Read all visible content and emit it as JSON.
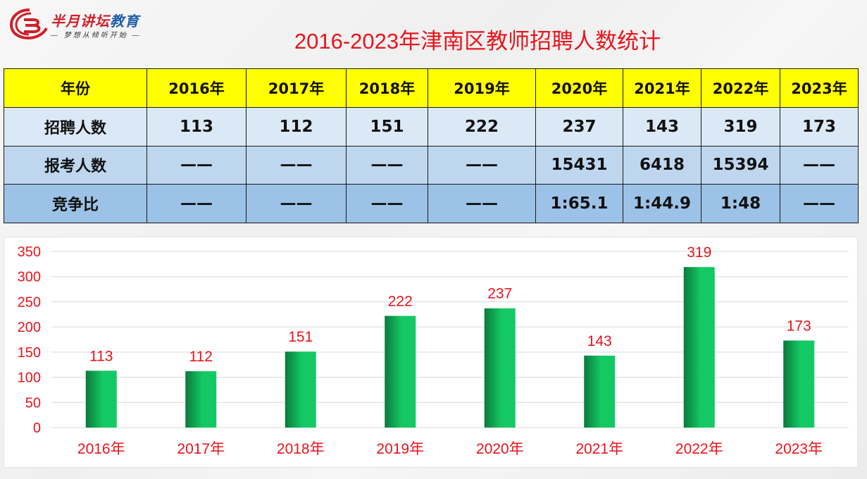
{
  "logo": {
    "name_red": "半月讲坛",
    "name_blue": "教育",
    "slogan": "— 梦想从倾听开始 —"
  },
  "title": "2016-2023年津南区教师招聘人数统计",
  "table": {
    "header": [
      "年份",
      "2016年",
      "2017年",
      "2018年",
      "2019年",
      "2020年",
      "2021年",
      "2022年",
      "2023年"
    ],
    "rows": [
      {
        "label": "招聘人数",
        "cells": [
          "113",
          "112",
          "151",
          "222",
          "237",
          "143",
          "319",
          "173"
        ]
      },
      {
        "label": "报考人数",
        "cells": [
          "——",
          "——",
          "——",
          "——",
          "15431",
          "6418",
          "15394",
          "——"
        ]
      },
      {
        "label": "竞争比",
        "cells": [
          "——",
          "——",
          "——",
          "——",
          "1:65.1",
          "1:44.9",
          "1:48",
          "——"
        ]
      }
    ],
    "colors": {
      "header": "#ffff00",
      "row1": "#dbe9f6",
      "row2": "#bed7ef",
      "row3": "#9cc2e7"
    }
  },
  "chart_data": {
    "type": "bar",
    "title": "2016-2023年津南区教师招聘人数统计",
    "categories": [
      "2016年",
      "2017年",
      "2018年",
      "2019年",
      "2020年",
      "2021年",
      "2022年",
      "2023年"
    ],
    "values": [
      113,
      112,
      151,
      222,
      237,
      143,
      319,
      173
    ],
    "data_labels": [
      "113",
      "112",
      "151",
      "222",
      "237",
      "143",
      "319",
      "173"
    ],
    "xlabel": "",
    "ylabel": "",
    "ylim": [
      0,
      350
    ],
    "yticks": [
      0,
      50,
      100,
      150,
      200,
      250,
      300,
      350
    ],
    "ytick_labels": [
      "0",
      "50",
      "100",
      "150",
      "200",
      "250",
      "300",
      "350"
    ],
    "grid": true,
    "legend": "none",
    "colors": {
      "bar_dark": "#0a7a3c",
      "bar_light": "#14c964",
      "text": "#e8141c",
      "grid": "#d9d9d9"
    }
  }
}
